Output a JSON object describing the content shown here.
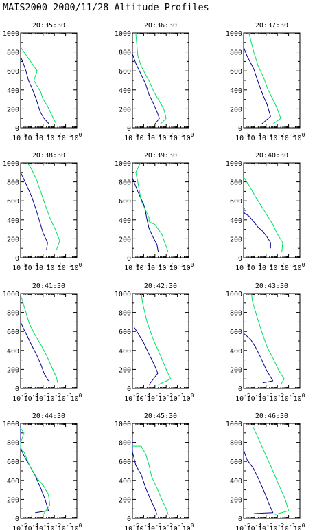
{
  "header": {
    "title": "MAIS2000 2000/11/28   Altitude Profiles"
  },
  "chart_data": {
    "type": "line",
    "layout": "4x3 grid of small multiples",
    "xscale": "log",
    "xlim": [
      1e-05,
      1
    ],
    "xticks": [
      1e-05,
      0.0001,
      0.001,
      0.01,
      0.1,
      1
    ],
    "xtick_labels": [
      {
        "base": "10",
        "exp": "-5"
      },
      {
        "base": "10",
        "exp": "-4"
      },
      {
        "base": "10",
        "exp": "-3"
      },
      {
        "base": "10",
        "exp": "-2"
      },
      {
        "base": "10",
        "exp": "-1"
      },
      {
        "base": "10",
        "exp": "0"
      }
    ],
    "ylim": [
      0,
      1000
    ],
    "yticks": [
      0,
      200,
      400,
      600,
      800,
      1000
    ],
    "grid": false,
    "colors": {
      "series_blue": "#000090",
      "series_green": "#00e060",
      "axes": "#000000"
    },
    "panels": [
      {
        "title": "20:35:30",
        "series": [
          {
            "color": "#000090",
            "x": [
              0.0035,
              0.0012,
              0.0006,
              0.0004,
              0.00025,
              0.00012,
              5e-05,
              3e-05,
              1.5e-05,
              1e-05
            ],
            "y": [
              40,
              100,
              160,
              220,
              300,
              400,
              500,
              600,
              700,
              750
            ]
          },
          {
            "color": "#00e060",
            "x": [
              0.015,
              0.01,
              0.005,
              0.0025,
              0.001,
              0.0006,
              0.0003,
              0.00015,
              0.0003,
              2e-05,
              1e-05
            ],
            "y": [
              40,
              80,
              150,
              230,
              300,
              380,
              440,
              500,
              600,
              800,
              850
            ]
          }
        ]
      },
      {
        "title": "20:36:30",
        "series": [
          {
            "color": "#000090",
            "x": [
              0.001,
              0.0025,
              0.0015,
              0.0007,
              0.0003,
              0.00015,
              6e-05,
              2e-05,
              8e-06
            ],
            "y": [
              40,
              100,
              170,
              260,
              350,
              460,
              560,
              680,
              780
            ]
          },
          {
            "color": "#00e060",
            "x": [
              0.003,
              0.01,
              0.006,
              0.002,
              0.0008,
              0.00035,
              0.00015,
              6e-05,
              3e-05,
              2e-05
            ],
            "y": [
              40,
              100,
              200,
              300,
              380,
              480,
              560,
              650,
              760,
              1000
            ]
          }
        ]
      },
      {
        "title": "20:37:30",
        "series": [
          {
            "color": "#000090",
            "x": [
              0.0004,
              0.0025,
              0.0012,
              0.0005,
              0.0002,
              8e-05,
              2e-05,
              8e-06
            ],
            "y": [
              40,
              120,
              250,
              350,
              480,
              620,
              760,
              850
            ]
          },
          {
            "color": "#00e060",
            "x": [
              0.004,
              0.02,
              0.01,
              0.004,
              0.0015,
              0.0006,
              0.0002,
              8e-05,
              4e-05,
              3e-05
            ],
            "y": [
              40,
              100,
              200,
              300,
              400,
              530,
              650,
              800,
              940,
              1000
            ]
          }
        ]
      },
      {
        "title": "20:38:30",
        "series": [
          {
            "color": "#000090",
            "x": [
              0.002,
              0.0025,
              0.001,
              0.0005,
              0.00025,
              0.0001,
              3e-05,
              1e-05
            ],
            "y": [
              80,
              160,
              260,
              380,
              500,
              640,
              780,
              900
            ]
          },
          {
            "color": "#00e060",
            "x": [
              0.015,
              0.03,
              0.012,
              0.004,
              0.0015,
              0.0006,
              0.00025,
              8e-05,
              4e-05
            ],
            "y": [
              80,
              180,
              300,
              420,
              560,
              700,
              830,
              950,
              1000
            ]
          }
        ]
      },
      {
        "title": "20:39:30",
        "series": [
          {
            "color": "#000090",
            "x": [
              0.002,
              0.0015,
              0.0006,
              0.0003,
              0.0002,
              0.00012,
              3e-05,
              1e-05
            ],
            "y": [
              60,
              140,
              230,
              310,
              400,
              540,
              700,
              840
            ]
          },
          {
            "color": "#00e060",
            "x": [
              0.015,
              0.008,
              0.004,
              0.001,
              0.0003,
              0.0003,
              0.00015,
              6e-05,
              3e-05,
              2e-05,
              5e-05
            ],
            "y": [
              60,
              150,
              250,
              350,
              380,
              420,
              500,
              600,
              800,
              900,
              1000
            ]
          }
        ]
      },
      {
        "title": "20:40:30",
        "series": [
          {
            "color": "#000090",
            "x": [
              0.0025,
              0.0025,
              0.0012,
              0.0005,
              0.0002,
              8e-05,
              3e-05,
              1.2e-05,
              8e-06,
              1.2e-05
            ],
            "y": [
              100,
              160,
              220,
              280,
              320,
              380,
              440,
              470,
              500,
              520
            ]
          },
          {
            "color": "#00e060",
            "x": [
              0.025,
              0.03,
              0.01,
              0.004,
              0.0012,
              0.0004,
              0.00015,
              6e-05,
              4e-05,
              1e-05
            ],
            "y": [
              60,
              160,
              250,
              350,
              450,
              540,
              620,
              700,
              740,
              850
            ]
          }
        ]
      },
      {
        "title": "20:41:30",
        "series": [
          {
            "color": "#000090",
            "x": [
              0.003,
              0.0012,
              0.0006,
              0.00025,
              0.0001,
              4e-05,
              2e-05,
              1e-05
            ],
            "y": [
              80,
              160,
              260,
              360,
              450,
              550,
              620,
              700
            ]
          },
          {
            "color": "#00e060",
            "x": [
              0.02,
              0.015,
              0.006,
              0.002,
              0.0007,
              0.0002,
              6e-05,
              3e-05,
              1.5e-05,
              1e-05
            ],
            "y": [
              60,
              120,
              220,
              350,
              450,
              560,
              680,
              800,
              920,
              980
            ]
          }
        ]
      },
      {
        "title": "20:42:30",
        "series": [
          {
            "color": "#000090",
            "x": [
              0.0003,
              0.0018,
              0.0008,
              0.0003,
              0.0001,
              4e-05,
              1.5e-05
            ],
            "y": [
              40,
              160,
              260,
              360,
              480,
              560,
              640
            ]
          },
          {
            "color": "#00e060",
            "x": [
              0.002,
              0.025,
              0.01,
              0.003,
              0.0008,
              0.0002,
              8e-05,
              6e-05
            ],
            "y": [
              40,
              100,
              200,
              350,
              500,
              700,
              900,
              1000
            ]
          }
        ]
      },
      {
        "title": "20:43:30",
        "series": [
          {
            "color": "#000090",
            "x": [
              0.0005,
              0.004,
              0.001,
              0.00035,
              0.00012,
              4e-05,
              1e-05
            ],
            "y": [
              60,
              80,
              200,
              320,
              430,
              520,
              580
            ]
          },
          {
            "color": "#00e060",
            "x": [
              0.02,
              0.04,
              0.012,
              0.004,
              0.0012,
              0.0004,
              0.00015,
              6e-05,
              5e-05
            ],
            "y": [
              40,
              100,
              200,
              320,
              440,
              600,
              760,
              920,
              1000
            ]
          }
        ]
      },
      {
        "title": "20:44:30",
        "series": [
          {
            "color": "#000090",
            "x": [
              0.0002,
              0.003,
              0.0015,
              0.0006,
              0.0002,
              6e-05,
              2e-05,
              1e-05,
              8e-06,
              1e-05,
              8e-06
            ],
            "y": [
              60,
              80,
              200,
              320,
              450,
              560,
              660,
              740,
              820,
              900,
              1000
            ]
          },
          {
            "color": "#00e060",
            "x": [
              0.001,
              0.004,
              0.003,
              0.001,
              0.0003,
              0.00012,
              6e-05,
              2e-05,
              1.01e-05,
              8e-06,
              2e-05,
              8e-06
            ],
            "y": [
              40,
              140,
              250,
              350,
              420,
              500,
              560,
              700,
              740,
              800,
              900,
              950
            ]
          }
        ]
      },
      {
        "title": "20:45:30",
        "series": [
          {
            "color": "#000090",
            "x": [
              0.0015,
              0.001,
              0.0004,
              0.00015,
              6e-05,
              2e-05,
              8e-06,
              6e-06
            ],
            "y": [
              40,
              100,
              200,
              320,
              460,
              560,
              700,
              860
            ]
          },
          {
            "color": "#00e060",
            "x": [
              0.015,
              0.01,
              0.004,
              0.0015,
              0.0005,
              0.0003,
              0.00015,
              6e-05,
              8e-06
            ],
            "y": [
              40,
              100,
              200,
              320,
              440,
              560,
              680,
              760,
              760
            ]
          }
        ]
      },
      {
        "title": "20:46:30",
        "series": [
          {
            "color": "#000090",
            "x": [
              8e-05,
              0.004,
              0.002,
              0.0008,
              0.00025,
              8e-05,
              2e-05,
              1e-05
            ],
            "y": [
              50,
              60,
              140,
              260,
              400,
              520,
              620,
              720
            ]
          },
          {
            "color": "#00e060",
            "x": [
              0.006,
              0.1,
              0.05,
              0.015,
              0.004,
              0.001,
              0.00025,
              6e-05
            ],
            "y": [
              40,
              80,
              200,
              340,
              500,
              660,
              820,
              980
            ]
          }
        ]
      }
    ]
  }
}
